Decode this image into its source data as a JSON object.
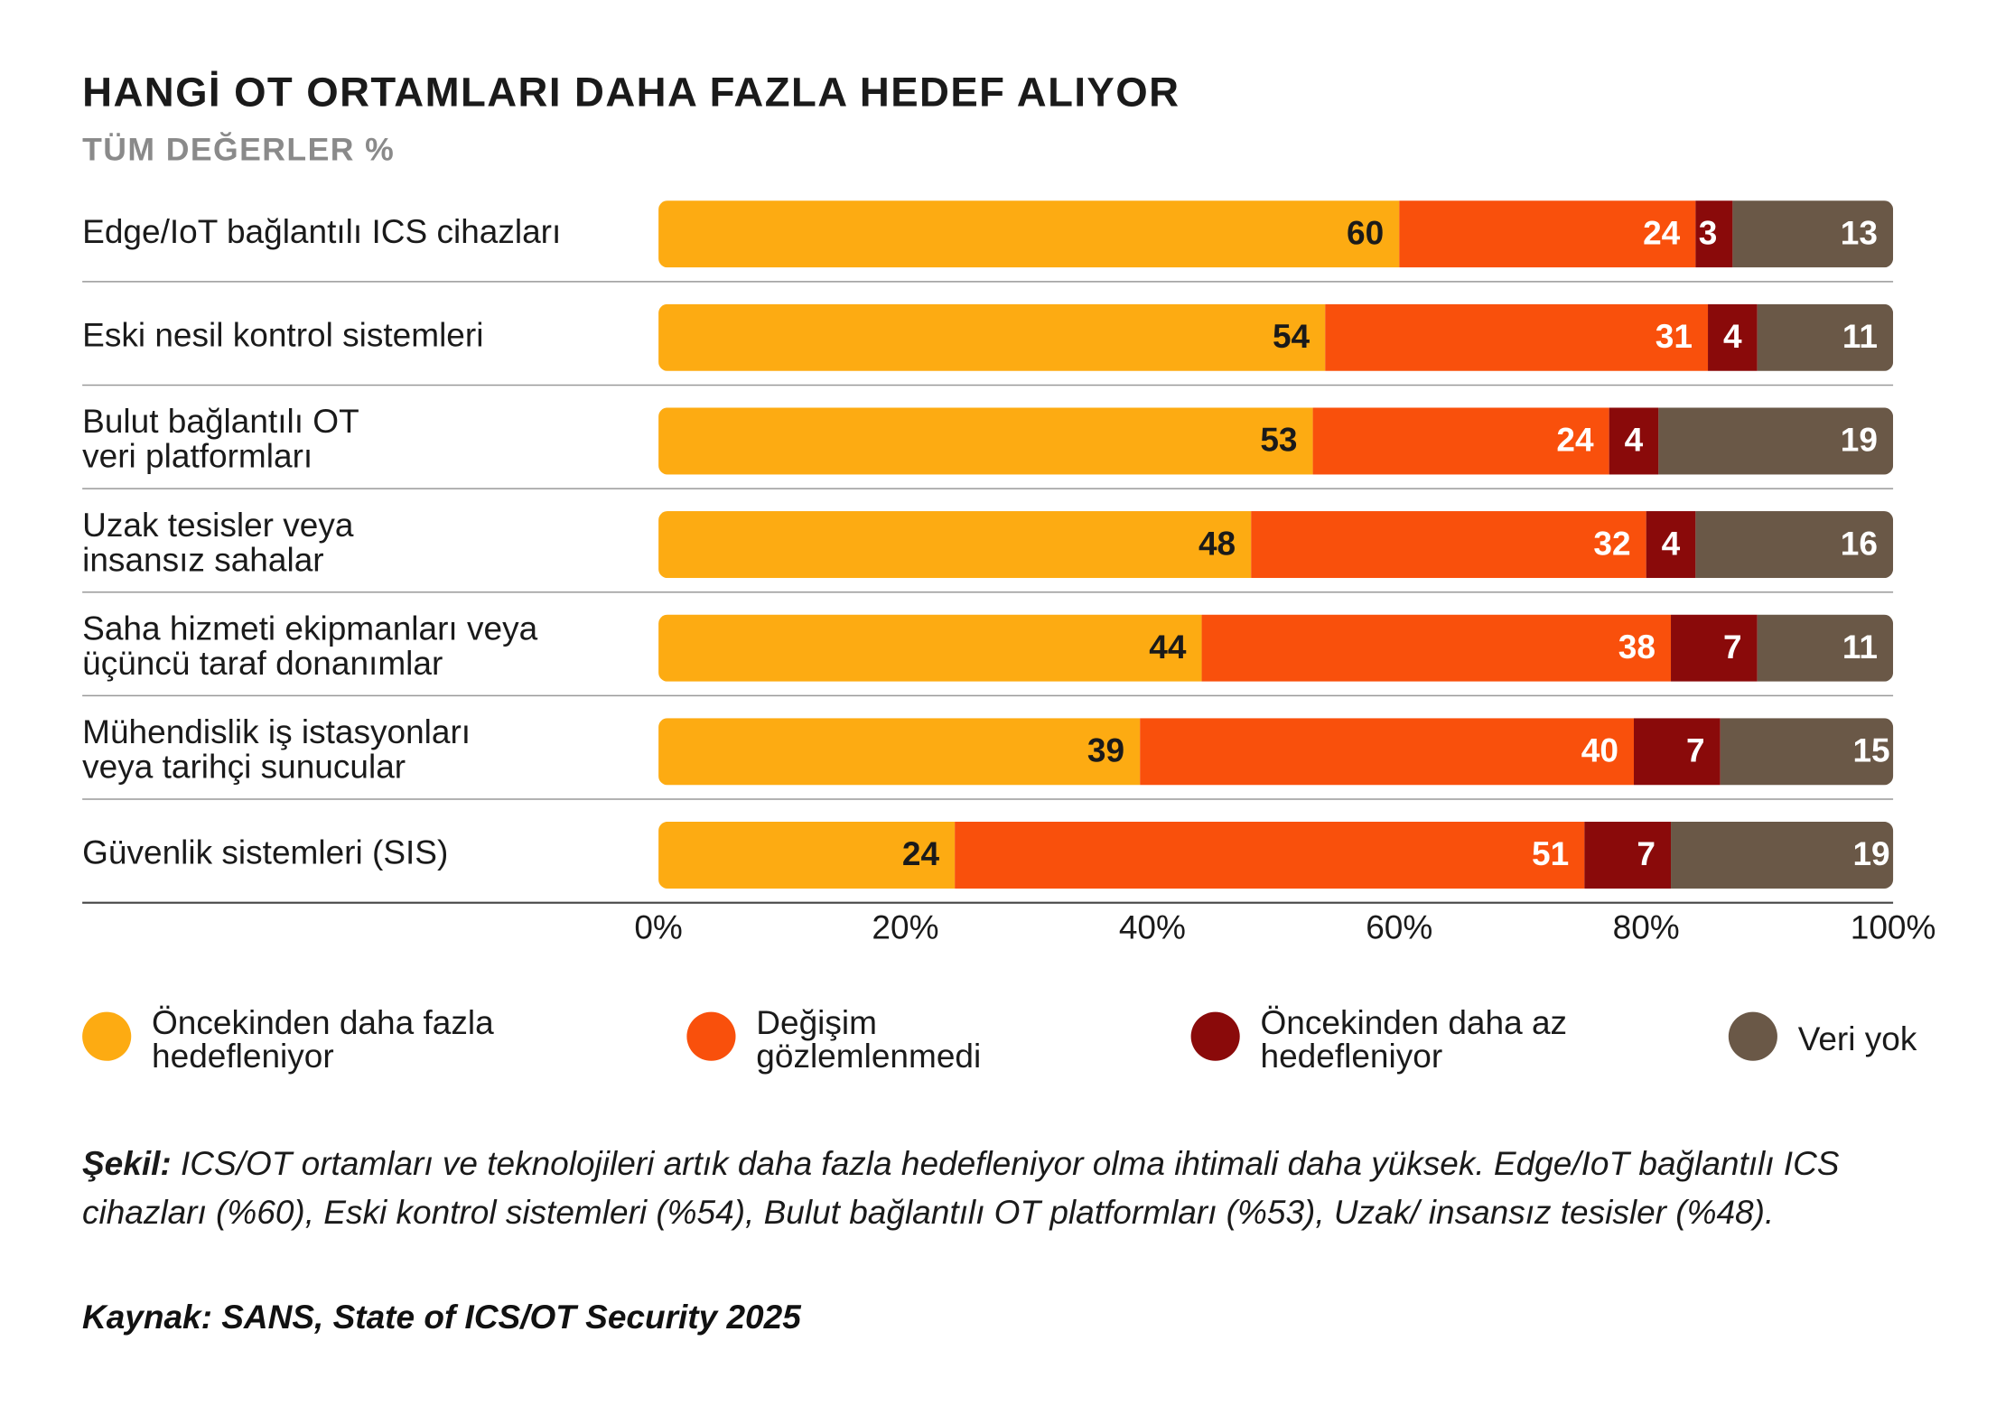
{
  "chart_data": {
    "type": "stacked-bar-horizontal",
    "title": "HANGİ OT ORTAMLARI DAHA FAZLA HEDEF ALIYOR",
    "subtitle": "TÜM DEĞERLER %",
    "categories": [
      "Edge/IoT bağlantılı ICS cihazları",
      "Eski nesil kontrol sistemleri",
      "Bulut bağlantılı OT\nveri platformları",
      "Uzak tesisler veya\ninsansız sahalar",
      "Saha hizmeti ekipmanları veya\nüçüncü taraf donanımlar",
      "Mühendislik iş istasyonları\nveya tarihçi sunucular",
      "Güvenlik sistemleri (SIS)"
    ],
    "series": [
      {
        "name": "Öncekinden daha fazla\nhedefleniyor",
        "color": "#fdab12",
        "label_color": "#1a1a1a",
        "values": [
          60,
          54,
          53,
          48,
          44,
          39,
          24
        ]
      },
      {
        "name": "Değişim\ngözlemlenmedi",
        "color": "#f9500c",
        "label_color": "#ffffff",
        "values": [
          24,
          31,
          24,
          32,
          38,
          40,
          51
        ]
      },
      {
        "name": "Öncekinden daha az\nhedefleniyor",
        "color": "#8a0a0a",
        "label_color": "#ffffff",
        "values": [
          3,
          4,
          4,
          4,
          7,
          7,
          7
        ]
      },
      {
        "name": "Veri yok",
        "color": "#6a5847",
        "label_color": "#ffffff",
        "values": [
          13,
          11,
          19,
          16,
          11,
          15,
          19
        ]
      }
    ],
    "xlim": [
      0,
      100
    ],
    "xticks": [
      {
        "value": 0,
        "label": "0%"
      },
      {
        "value": 20,
        "label": "20%"
      },
      {
        "value": 40,
        "label": "40%"
      },
      {
        "value": 60,
        "label": "60%"
      },
      {
        "value": 80,
        "label": "80%"
      },
      {
        "value": 100,
        "label": "100%"
      }
    ],
    "legend": "bottom",
    "caption": {
      "label": "Şekil:",
      "text": "ICS/OT ortamları ve teknolojileri artık daha fazla hedefleniyor olma ihtimali daha yüksek. Edge/IoT bağlantılı ICS cihazları (%60), Eski kontrol sistemleri (%54), Bulut bağlantılı OT platformları (%53), Uzak/ insansız tesisler (%48)."
    },
    "source": "Kaynak: SANS, State of ICS/OT Security 2025"
  }
}
